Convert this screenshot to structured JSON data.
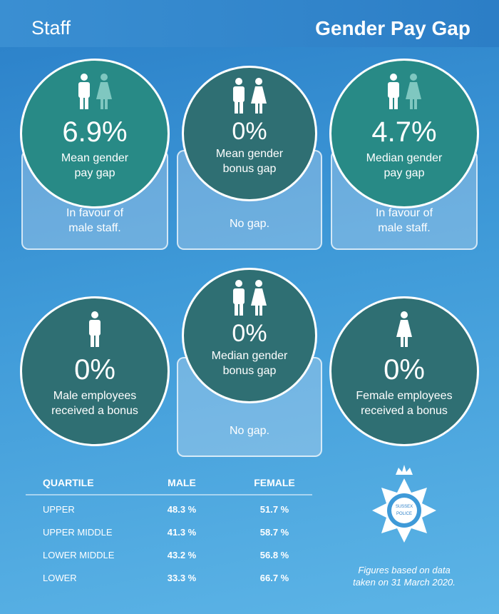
{
  "header": {
    "section": "Staff",
    "title": "Gender Pay Gap"
  },
  "stats": [
    {
      "value": "6.9%",
      "label": [
        "Mean gender",
        "pay gap"
      ],
      "note": [
        "In favour of",
        "male staff."
      ]
    },
    {
      "value": "0%",
      "label": [
        "Mean gender",
        "bonus gap"
      ],
      "note": [
        "No gap."
      ]
    },
    {
      "value": "4.7%",
      "label": [
        "Median gender",
        "pay gap"
      ],
      "note": [
        "In favour of",
        "male staff."
      ]
    },
    {
      "value": "0%",
      "label": [
        "Male employees",
        "received a bonus"
      ]
    },
    {
      "value": "0%",
      "label": [
        "Median gender",
        "bonus gap"
      ],
      "note": [
        "No gap."
      ]
    },
    {
      "value": "0%",
      "label": [
        "Female employees",
        "received a bonus"
      ]
    }
  ],
  "table": {
    "headers": [
      "QUARTILE",
      "MALE",
      "FEMALE"
    ],
    "rows": [
      [
        "UPPER",
        "48.3 %",
        "51.7 %"
      ],
      [
        "UPPER MIDDLE",
        "41.3 %",
        "58.7 %"
      ],
      [
        "LOWER MIDDLE",
        "43.2 %",
        "56.8 %"
      ],
      [
        "LOWER",
        "33.3 %",
        "66.7 %"
      ]
    ]
  },
  "logo": [
    "SUSSEX",
    "POLICE"
  ],
  "footnote": [
    "Figures based on data",
    "taken on 31 March 2020."
  ]
}
